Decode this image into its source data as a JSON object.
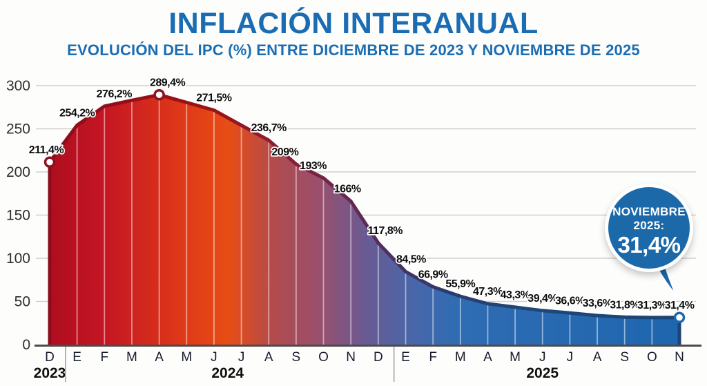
{
  "header": {
    "title": "INFLACIÓN INTERANUAL",
    "subtitle": "EVOLUCIÓN DEL IPC (%) ENTRE DICIEMBRE DE 2023 Y NOVIEMBRE DE 2025"
  },
  "callout": {
    "line1": "NOVIEMBRE",
    "line2": "2025:",
    "value": "31,4%"
  },
  "colors": {
    "title_blue": "#1a6db3",
    "callout_blue": "#1b69a9",
    "axis_gray": "#4b4b4b",
    "gridline_gray": "#cfcfcf",
    "marker_ring_red": "#8e1021",
    "marker_ring_blue": "#1d69ac",
    "area_gradient": [
      "#ae0e1f",
      "#c41523",
      "#e03a17",
      "#e74d15",
      "#b04b4f",
      "#9b4f6b",
      "#6a5a92",
      "#4767a9",
      "#2f6cb3",
      "#1e66ae"
    ],
    "line_gradient": [
      "#8c0d1b",
      "#9c1215",
      "#8c1d33",
      "#5e2a55",
      "#2e3a6e",
      "#1f4678",
      "#1c4476"
    ]
  },
  "chart_data": {
    "type": "area",
    "title": "INFLACIÓN INTERANUAL",
    "subtitle": "EVOLUCIÓN DEL IPC (%) ENTRE DICIEMBRE DE 2023 Y NOVIEMBRE DE 2025",
    "xlabel": "",
    "ylabel": "",
    "ylim": [
      0,
      300
    ],
    "yticks": [
      0,
      50,
      100,
      150,
      200,
      250,
      300
    ],
    "grid": true,
    "legend": false,
    "x_years": [
      {
        "label": "2023",
        "start": 0,
        "end": 0
      },
      {
        "label": "2024",
        "start": 1,
        "end": 12
      },
      {
        "label": "2025",
        "start": 13,
        "end": 23
      }
    ],
    "points": [
      {
        "month": "D",
        "year": "2023",
        "value": 211.4,
        "label": "211,4%",
        "marker": true
      },
      {
        "month": "E",
        "year": "2024",
        "value": 254.2,
        "label": "254,2%"
      },
      {
        "month": "F",
        "year": "2024",
        "value": 276.2,
        "label": "276,2%"
      },
      {
        "month": "M",
        "year": "2024",
        "value": 283.0,
        "label": null,
        "estimated": true
      },
      {
        "month": "A",
        "year": "2024",
        "value": 289.4,
        "label": "289,4%",
        "marker": true
      },
      {
        "month": "M",
        "year": "2024",
        "value": 280.5,
        "label": null,
        "estimated": true
      },
      {
        "month": "J",
        "year": "2024",
        "value": 271.5,
        "label": "271,5%"
      },
      {
        "month": "J",
        "year": "2024",
        "value": 254.0,
        "label": null,
        "estimated": true
      },
      {
        "month": "A",
        "year": "2024",
        "value": 236.7,
        "label": "236,7%"
      },
      {
        "month": "S",
        "year": "2024",
        "value": 209.0,
        "label": "209%"
      },
      {
        "month": "O",
        "year": "2024",
        "value": 193.0,
        "label": "193%"
      },
      {
        "month": "N",
        "year": "2024",
        "value": 166.0,
        "label": "166%"
      },
      {
        "month": "D",
        "year": "2024",
        "value": 117.8,
        "label": "117,8%"
      },
      {
        "month": "E",
        "year": "2025",
        "value": 84.5,
        "label": "84,5%"
      },
      {
        "month": "F",
        "year": "2025",
        "value": 66.9,
        "label": "66,9%"
      },
      {
        "month": "M",
        "year": "2025",
        "value": 55.9,
        "label": "55,9%"
      },
      {
        "month": "A",
        "year": "2025",
        "value": 47.3,
        "label": "47,3%"
      },
      {
        "month": "M",
        "year": "2025",
        "value": 43.3,
        "label": "43,3%"
      },
      {
        "month": "J",
        "year": "2025",
        "value": 39.4,
        "label": "39,4%"
      },
      {
        "month": "J",
        "year": "2025",
        "value": 36.6,
        "label": "36,6%"
      },
      {
        "month": "A",
        "year": "2025",
        "value": 33.6,
        "label": "33,6%"
      },
      {
        "month": "S",
        "year": "2025",
        "value": 31.8,
        "label": "31,8%"
      },
      {
        "month": "O",
        "year": "2025",
        "value": 31.3,
        "label": "31,3%"
      },
      {
        "month": "N",
        "year": "2025",
        "value": 31.4,
        "label": "31,4%",
        "marker": true
      }
    ]
  }
}
